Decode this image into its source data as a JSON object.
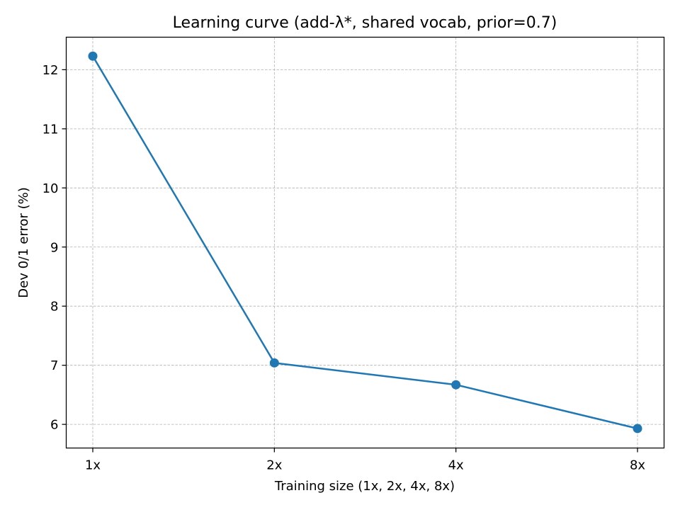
{
  "chart_data": {
    "type": "line",
    "title": "Learning curve (add-λ*, shared vocab, prior=0.7)",
    "xlabel": "Training size (1x, 2x, 4x, 8x)",
    "ylabel": "Dev 0/1 error (%)",
    "categories": [
      "1x",
      "2x",
      "4x",
      "8x"
    ],
    "series": [
      {
        "values": [
          12.23,
          7.04,
          6.67,
          5.93
        ],
        "color": "#1f77b4",
        "marker": "circle"
      }
    ],
    "ylim": [
      5.6,
      12.55
    ],
    "yticks": [
      6,
      7,
      8,
      9,
      10,
      11,
      12
    ],
    "grid": true
  }
}
